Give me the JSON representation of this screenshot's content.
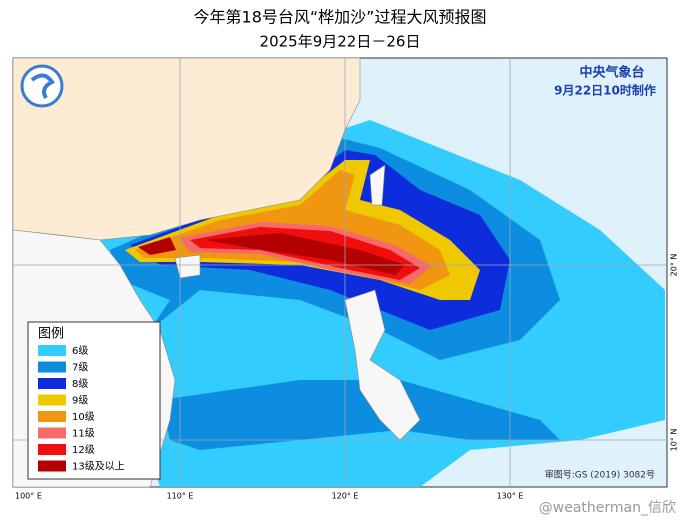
{
  "header": {
    "title": "今年第18号台风“桦加沙”过程大风预报图",
    "subtitle": "2025年9月22日－26日"
  },
  "agency": "中央气象台",
  "issued": "9月22日10时制作",
  "legend": {
    "title": "图例",
    "items": [
      {
        "label": "6级",
        "color": "#33ccff"
      },
      {
        "label": "7级",
        "color": "#0d8de0"
      },
      {
        "label": "8级",
        "color": "#0d2cdb"
      },
      {
        "label": "9级",
        "color": "#f0c800"
      },
      {
        "label": "10级",
        "color": "#f09611"
      },
      {
        "label": "11级",
        "color": "#f76a6a"
      },
      {
        "label": "12级",
        "color": "#ef0d0d"
      },
      {
        "label": "13级及以上",
        "color": "#b30000"
      }
    ]
  },
  "lon_labels": [
    "100° E",
    "110° E",
    "120° E",
    "130° E"
  ],
  "lat_labels": [
    "20° N",
    "10° N"
  ],
  "footnote": "审图号:GS (2019) 3082号",
  "watermark": "@weatherman_信欣"
}
